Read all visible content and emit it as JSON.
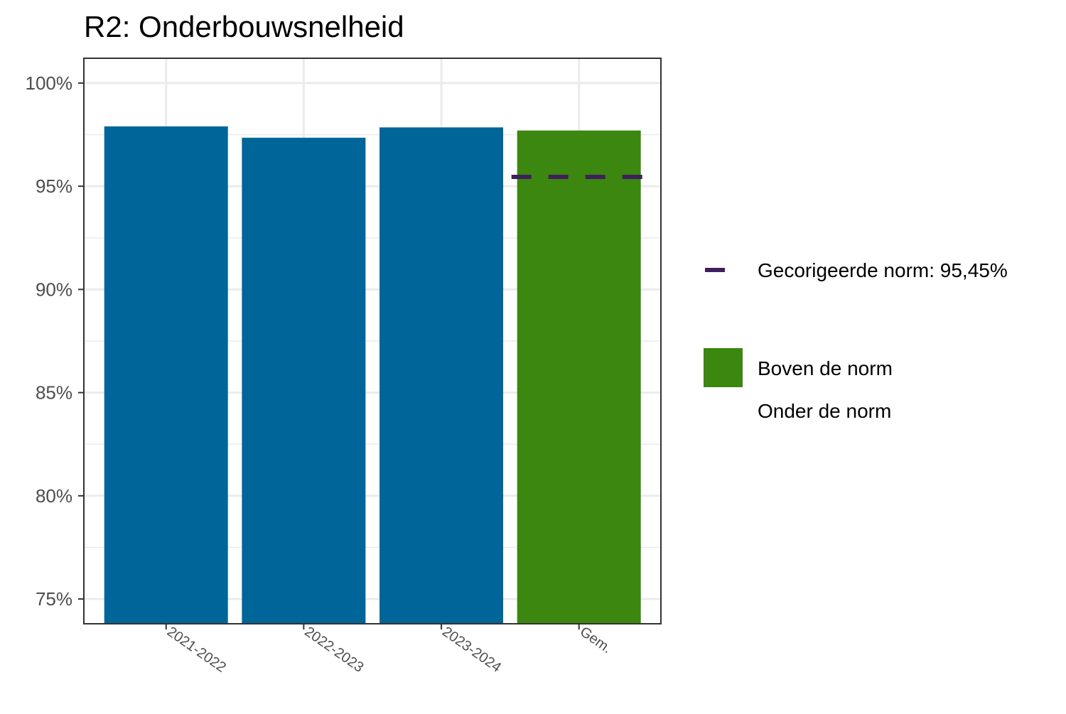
{
  "chart_data": {
    "type": "bar",
    "title": "R2: Onderbouwsnelheid",
    "categories": [
      "2021-2022",
      "2022-2023",
      "2023-2024",
      "Gem."
    ],
    "values": [
      97.9,
      97.35,
      97.85,
      97.7
    ],
    "bar_groups": [
      "history",
      "history",
      "history",
      "Boven de norm"
    ],
    "ylim": [
      73.8,
      101.2
    ],
    "yticks": [
      75,
      80,
      85,
      90,
      95,
      100
    ],
    "ytick_labels": [
      "75%",
      "80%",
      "85%",
      "90%",
      "95%",
      "100%"
    ],
    "norm": {
      "value": 95.45,
      "label": "Gecorigeerde norm: 95,45%",
      "color": "#3f1f5c",
      "applies_to": "Gem."
    },
    "legend": {
      "placement": "right",
      "items": [
        {
          "key": "norm",
          "label": "Gecorigeerde norm: 95,45%",
          "symbol": "dash",
          "color": "#3f1f5c"
        },
        {
          "key": "boven",
          "label": "Boven de norm",
          "symbol": "box",
          "color": "#3b870f"
        },
        {
          "key": "onder",
          "label": "Onder de norm",
          "symbol": "none",
          "color": ""
        }
      ]
    },
    "grid": true,
    "colors": {
      "history": "#006699",
      "Boven de norm": "#3b870f",
      "grid": "#ebebeb",
      "frame": "#333333"
    }
  }
}
